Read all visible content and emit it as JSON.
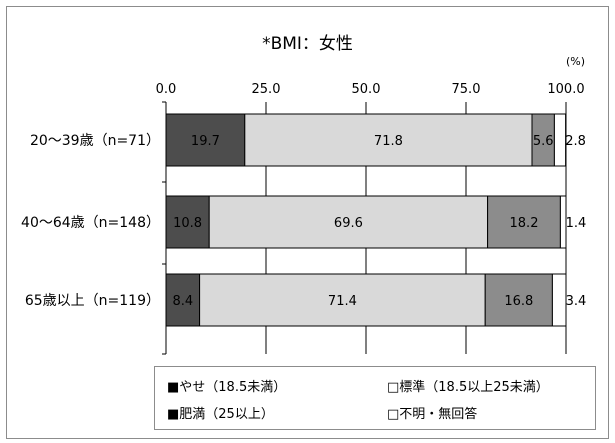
{
  "chart_data": {
    "type": "bar",
    "orientation": "horizontal",
    "stacked": true,
    "title": "*BMI：女性",
    "unit": "(%)",
    "categories": [
      "20〜39歳（n=71）",
      "40〜64歳（n=148）",
      "65歳以上（n=119）"
    ],
    "x_ticks": [
      "0.0",
      "25.0",
      "50.0",
      "75.0",
      "100.0"
    ],
    "xlim": [
      0,
      100
    ],
    "grid": true,
    "legend_position": "bottom",
    "series": [
      {
        "name": "■やせ（18.5未満）",
        "color": "#4d4d4d",
        "text_color": "#ffffff",
        "values": [
          19.7,
          10.8,
          8.4
        ],
        "labels": [
          "19.7",
          "10.8",
          "8.4"
        ]
      },
      {
        "name": "□標準（18.5以上25未満）",
        "color": "#d9d9d9",
        "text_color": "#000000",
        "values": [
          71.8,
          69.6,
          71.4
        ],
        "labels": [
          "71.8",
          "69.6",
          "71.4"
        ]
      },
      {
        "name": "■肥満（25以上）",
        "color": "#8c8c8c",
        "text_color": "#000000",
        "values": [
          5.6,
          18.2,
          16.8
        ],
        "labels": [
          "5.6",
          "18.2",
          "16.8"
        ]
      },
      {
        "name": "□不明・無回答",
        "color": "#ffffff",
        "text_color": "#000000",
        "values": [
          2.8,
          1.4,
          3.4
        ],
        "labels": [
          "2.8",
          "1.4",
          "3.4"
        ]
      }
    ]
  }
}
